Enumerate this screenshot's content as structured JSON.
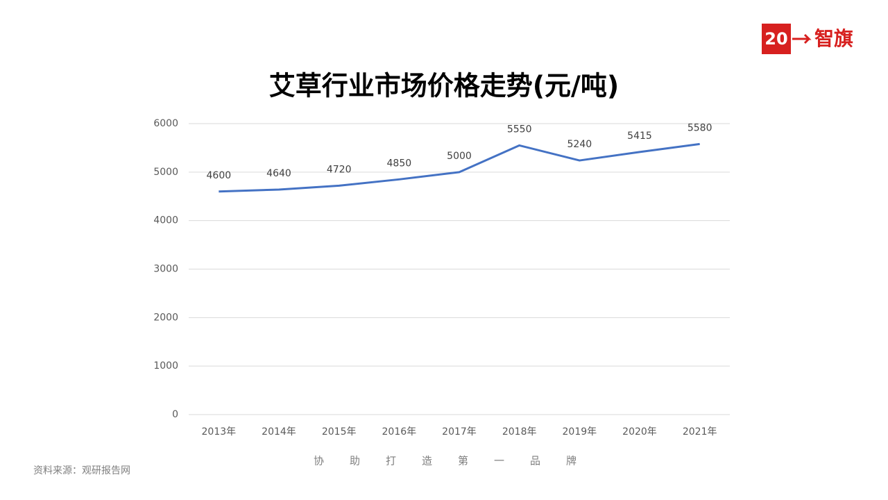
{
  "chart_data": {
    "type": "line",
    "title": "艾草行业市场价格走势(元/吨)",
    "categories": [
      "2013年",
      "2014年",
      "2015年",
      "2016年",
      "2017年",
      "2018年",
      "2019年",
      "2020年",
      "2021年"
    ],
    "values": [
      4600,
      4640,
      4720,
      4850,
      5000,
      5550,
      5240,
      5415,
      5580
    ],
    "color": "#4472c4",
    "ylim": [
      0,
      6000
    ],
    "yticks": [
      0,
      1000,
      2000,
      3000,
      4000,
      5000,
      6000
    ],
    "grid": true,
    "source": "资料来源：观研报告网",
    "slogan": "协助打造第一品牌",
    "logo": {
      "number": "20",
      "name": "智旗"
    }
  }
}
